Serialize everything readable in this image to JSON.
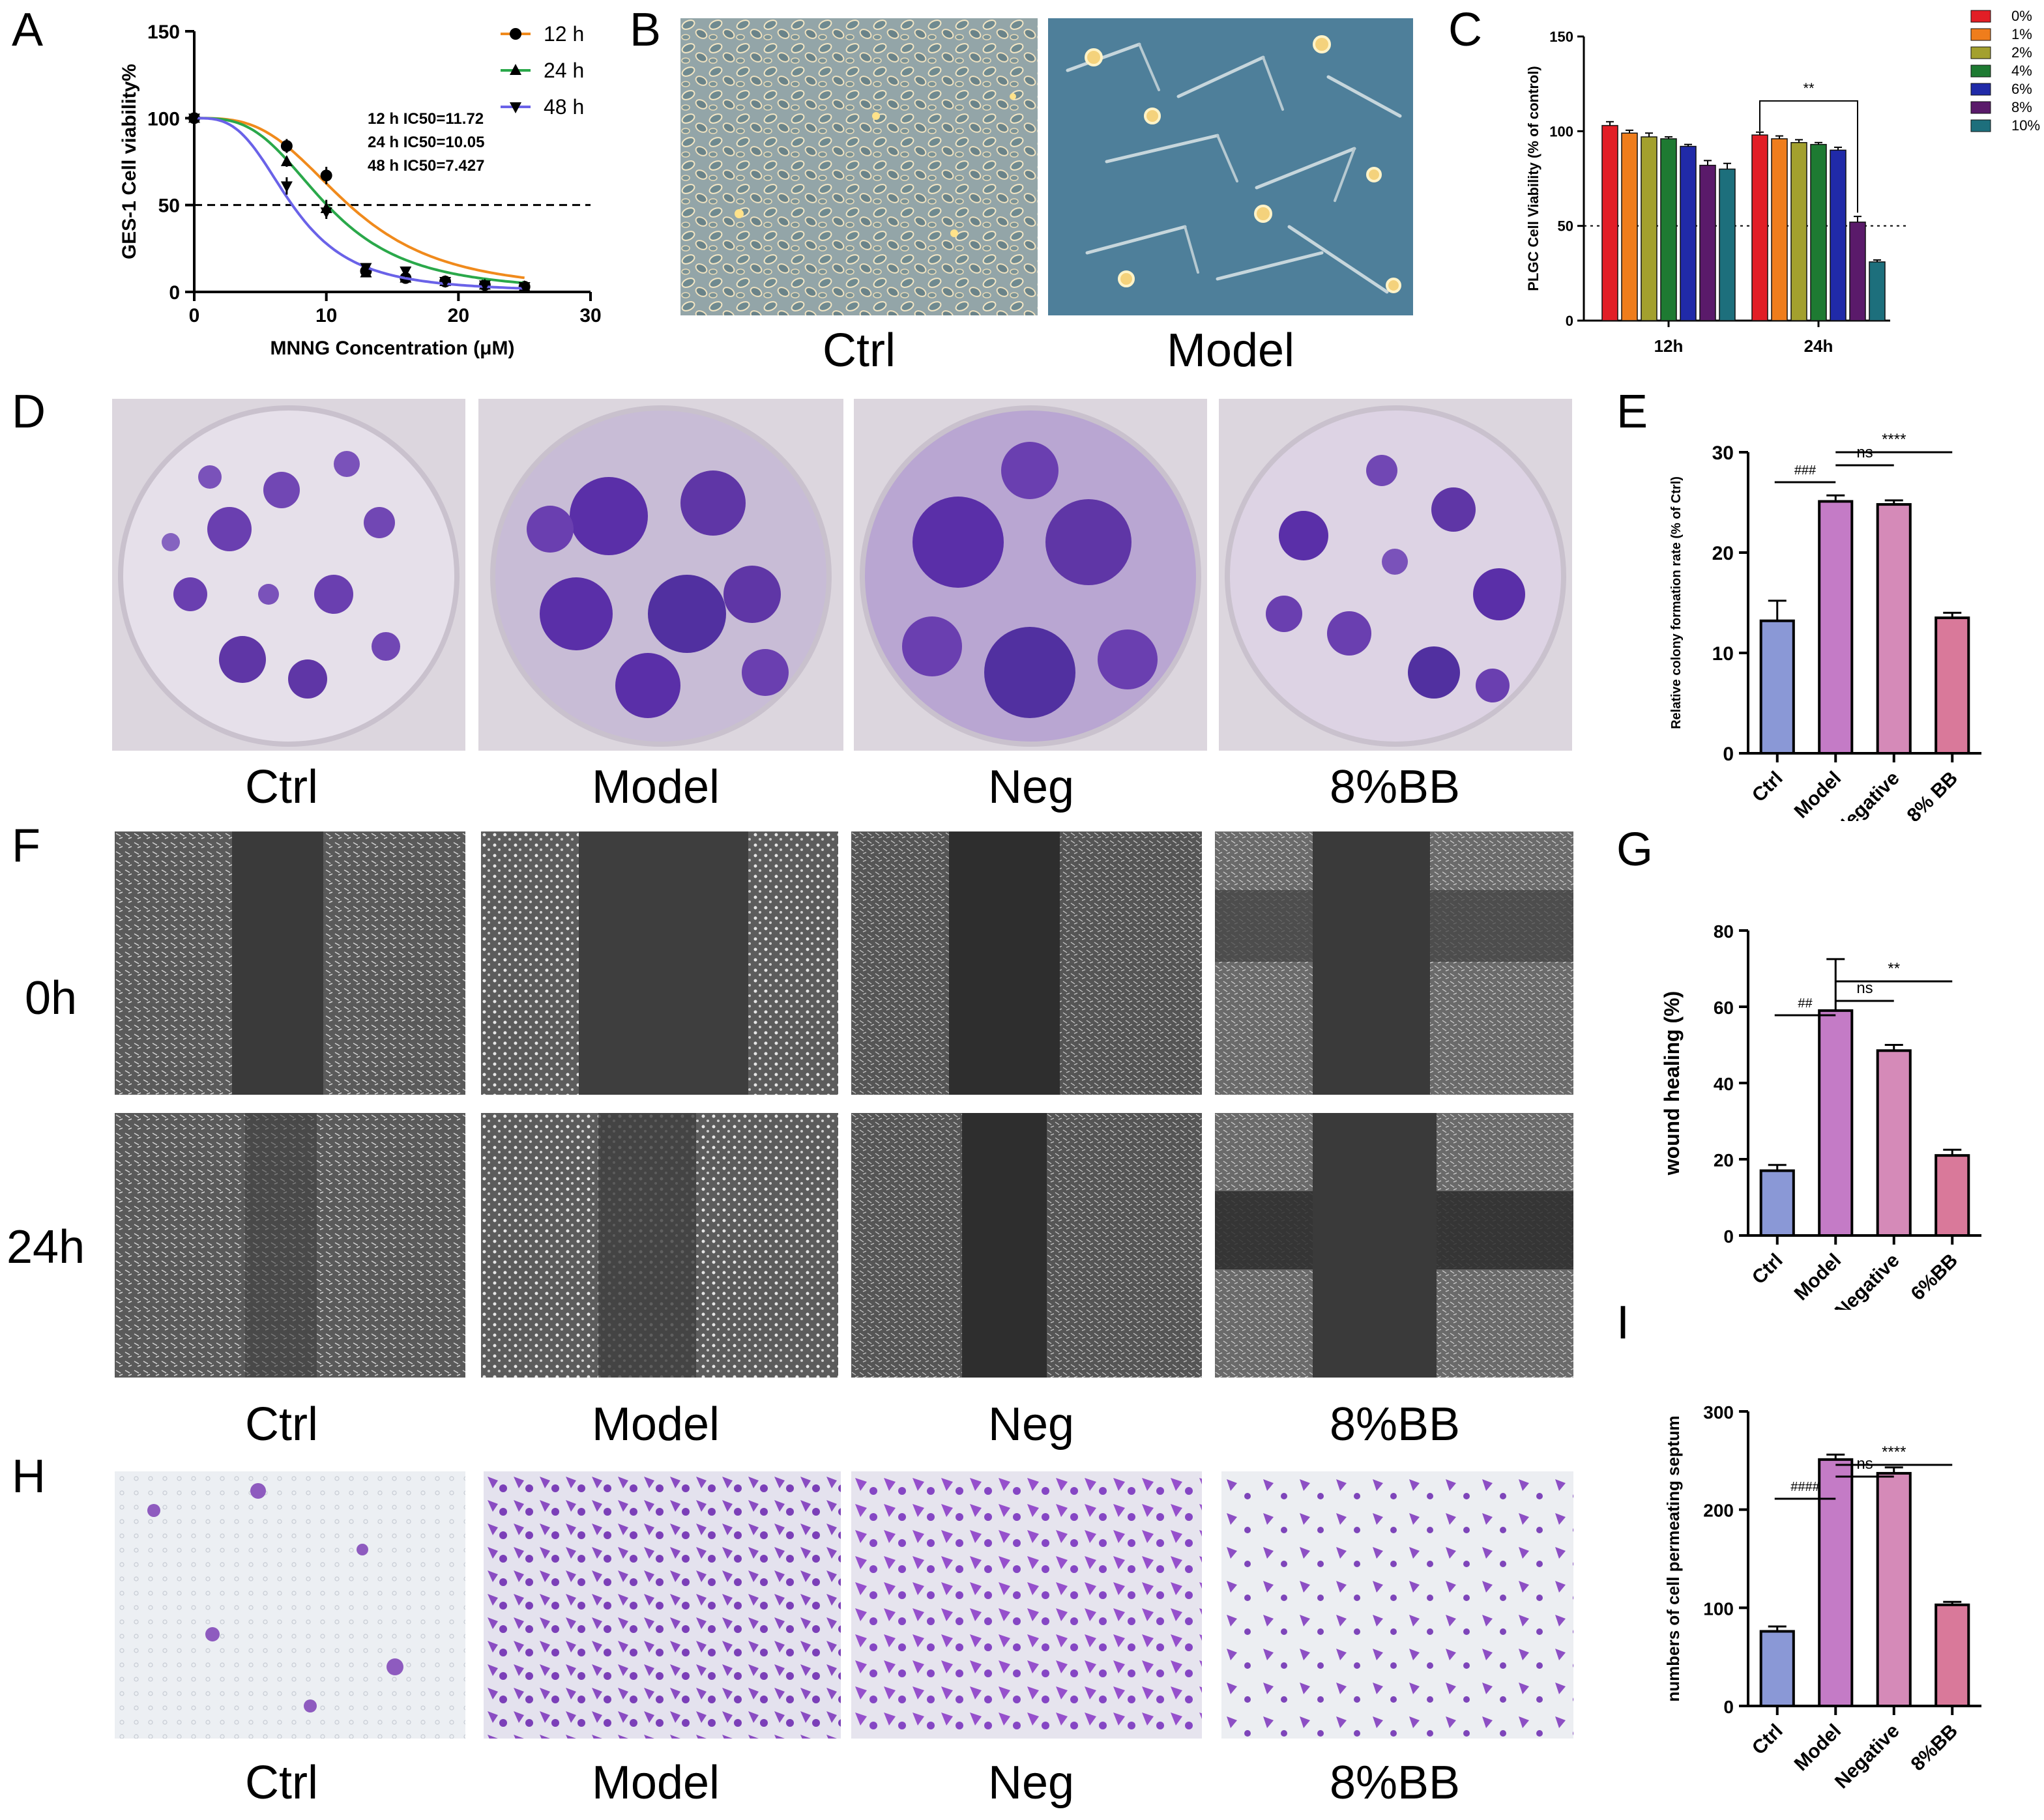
{
  "panel_labels": {
    "A": "A",
    "B": "B",
    "C": "C",
    "D": "D",
    "E": "E",
    "F": "F",
    "G": "G",
    "H": "H",
    "I": "I"
  },
  "chart_data": [
    {
      "id": "A",
      "type": "line",
      "title": "",
      "xlabel": "MNNG Concentration (μM)",
      "ylabel": "GES-1 Cell viability%",
      "xlim": [
        0,
        30
      ],
      "ylim": [
        0,
        150
      ],
      "xticks": [
        0,
        10,
        20,
        30
      ],
      "yticks": [
        0,
        50,
        100,
        150
      ],
      "reference_line": 50,
      "series": [
        {
          "name": "12 h",
          "color": "#f08a1c",
          "marker": "circle",
          "x": [
            0,
            7,
            10,
            13,
            16,
            19,
            22,
            25
          ],
          "y": [
            100,
            84,
            67,
            12,
            8,
            6,
            4,
            3
          ],
          "err": [
            6,
            4,
            5,
            2,
            1,
            1,
            1,
            1
          ],
          "ic50": 11.72
        },
        {
          "name": "24 h",
          "color": "#2aa84a",
          "marker": "triangle-up",
          "x": [
            0,
            7,
            10,
            13,
            16,
            19,
            22,
            25
          ],
          "y": [
            100,
            75,
            48,
            11,
            8,
            6,
            4,
            3
          ],
          "err": [
            4,
            3,
            5,
            2,
            1,
            1,
            1,
            1
          ],
          "ic50": 10.05
        },
        {
          "name": "48 h",
          "color": "#6a62e8",
          "marker": "triangle-down",
          "x": [
            0,
            7,
            10,
            13,
            16,
            19,
            22,
            25
          ],
          "y": [
            100,
            61,
            46,
            14,
            12,
            6,
            4,
            3
          ],
          "err": [
            3,
            5,
            4,
            2,
            1,
            1,
            1,
            1
          ],
          "ic50": 7.427
        }
      ],
      "annotations": [
        "12 h IC50=11.72",
        "24 h IC50=10.05",
        "48 h IC50=7.427"
      ]
    },
    {
      "id": "C",
      "type": "bar",
      "title": "",
      "xlabel": "",
      "ylabel": "PLGC Cell Viability (% of control)",
      "ylim": [
        0,
        150
      ],
      "yticks": [
        0,
        50,
        100,
        150
      ],
      "reference_line": 50,
      "categories": [
        "12h",
        "24h"
      ],
      "series": [
        {
          "name": "0%",
          "color": "#e21e26",
          "values": [
            103,
            98
          ],
          "err": [
            2,
            1.5
          ]
        },
        {
          "name": "1%",
          "color": "#ef7d1c",
          "values": [
            99,
            96
          ],
          "err": [
            1.5,
            1.5
          ]
        },
        {
          "name": "2%",
          "color": "#a3a02e",
          "values": [
            97,
            94
          ],
          "err": [
            2,
            1.5
          ]
        },
        {
          "name": "4%",
          "color": "#1e7a32",
          "values": [
            96,
            93
          ],
          "err": [
            1,
            1
          ]
        },
        {
          "name": "6%",
          "color": "#202aa8",
          "values": [
            92,
            90
          ],
          "err": [
            1,
            1.5
          ]
        },
        {
          "name": "8%",
          "color": "#5a1a6a",
          "values": [
            82,
            52
          ],
          "err": [
            2.5,
            3
          ]
        },
        {
          "name": "10%",
          "color": "#1d6f7c",
          "values": [
            80,
            31
          ],
          "err": [
            3,
            1
          ]
        }
      ],
      "significance": "**"
    },
    {
      "id": "E",
      "type": "bar",
      "title": "",
      "xlabel": "",
      "ylabel": "Relative colony formation rate (% of Ctrl)",
      "ylim": [
        0,
        30
      ],
      "yticks": [
        0,
        10,
        20,
        30
      ],
      "categories": [
        "Ctrl",
        "Model",
        "Negative",
        "8% BB"
      ],
      "values": [
        13.2,
        25.1,
        24.8,
        13.5
      ],
      "err": [
        2.0,
        0.6,
        0.4,
        0.5
      ],
      "colors": [
        "#8a98d6",
        "#c47bc6",
        "#d58ab8",
        "#d9799a"
      ],
      "significance": [
        {
          "from": 0,
          "to": 1,
          "label": "###"
        },
        {
          "from": 1,
          "to": 2,
          "label": "ns"
        },
        {
          "from": 1,
          "to": 3,
          "label": "****"
        }
      ]
    },
    {
      "id": "G",
      "type": "bar",
      "title": "",
      "xlabel": "",
      "ylabel": "wound healing (%)",
      "ylim": [
        0,
        80
      ],
      "yticks": [
        0,
        20,
        40,
        60,
        80
      ],
      "categories": [
        "Ctrl",
        "Model",
        "Negative",
        "6%BB"
      ],
      "values": [
        17,
        59,
        48.5,
        21
      ],
      "err": [
        1.5,
        13.5,
        1.5,
        1.5
      ],
      "colors": [
        "#8a98d6",
        "#c47bc6",
        "#d58ab8",
        "#d9799a"
      ],
      "significance": [
        {
          "from": 0,
          "to": 1,
          "label": "##"
        },
        {
          "from": 1,
          "to": 2,
          "label": "ns"
        },
        {
          "from": 1,
          "to": 3,
          "label": "**"
        }
      ]
    },
    {
      "id": "I",
      "type": "bar",
      "title": "",
      "xlabel": "",
      "ylabel": "numbers of cell permeating septum",
      "ylim": [
        0,
        300
      ],
      "yticks": [
        0,
        100,
        200,
        300
      ],
      "categories": [
        "Ctrl",
        "Model",
        "Negative",
        "8%BB"
      ],
      "values": [
        76,
        251,
        237,
        103
      ],
      "err": [
        5,
        5,
        6,
        3
      ],
      "colors": [
        "#8a98d6",
        "#c47bc6",
        "#d58ab8",
        "#d9799a"
      ],
      "significance": [
        {
          "from": 0,
          "to": 1,
          "label": "####"
        },
        {
          "from": 1,
          "to": 2,
          "label": "ns"
        },
        {
          "from": 1,
          "to": 3,
          "label": "****"
        }
      ]
    }
  ],
  "panel_B": {
    "captions": [
      "Ctrl",
      "Model"
    ]
  },
  "panel_D": {
    "captions": [
      "Ctrl",
      "Model",
      "Neg",
      "8%BB"
    ]
  },
  "panel_F": {
    "row_labels": [
      "0h",
      "24h"
    ],
    "captions": [
      "Ctrl",
      "Model",
      "Neg",
      "8%BB"
    ]
  },
  "panel_H": {
    "captions": [
      "Ctrl",
      "Model",
      "Neg",
      "8%BB"
    ]
  },
  "colors": {
    "crystal_violet": "#5a2fa8",
    "plate_bg": "#d8d0dc",
    "phase_bg": "#4f6a78",
    "wound_bg": "#3c3c3c"
  }
}
